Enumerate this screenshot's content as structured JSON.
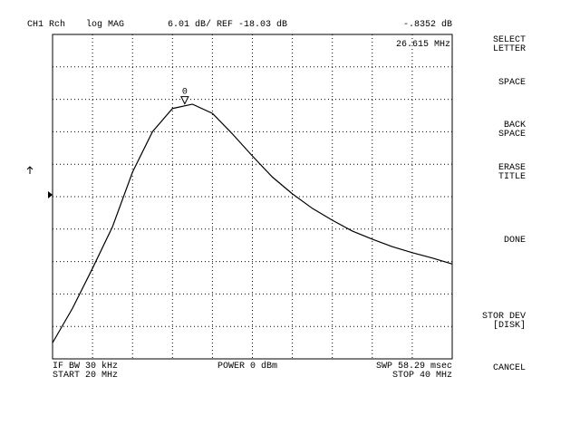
{
  "chart_data": {
    "type": "line",
    "header": {
      "channel": "CH1 Rch",
      "format": "log MAG",
      "scale": "6.01 dB/ REF -18.03 dB"
    },
    "marker": {
      "label": "0",
      "x": 26.615,
      "y": -0.8352,
      "x_label": "26.615 MHz",
      "y_label": "-.8352 dB"
    },
    "x": [
      20,
      21,
      22,
      23,
      24,
      25,
      26,
      27,
      28,
      29,
      30,
      31,
      32,
      33,
      34,
      35,
      36,
      37,
      38,
      39,
      40
    ],
    "series": [
      {
        "name": "CH1 Rch",
        "color": "#000000",
        "values": [
          -45.1,
          -38.7,
          -31.3,
          -23.6,
          -13.5,
          -6.0,
          -1.7,
          -0.9,
          -2.6,
          -6.4,
          -10.5,
          -14.4,
          -17.5,
          -20.2,
          -22.4,
          -24.4,
          -25.9,
          -27.3,
          -28.4,
          -29.4,
          -30.5
        ]
      }
    ],
    "xlim": [
      20,
      40
    ],
    "ylim": [
      -48.08,
      12.02
    ],
    "footer": {
      "ifbw": "IF BW 30 kHz",
      "start": "START 20 MHz",
      "power": "POWER 0 dBm",
      "sweep": "SWP 58.29 msec",
      "stop": "STOP 40 MHz"
    }
  },
  "softkeys": [
    [
      "SELECT",
      "LETTER"
    ],
    [
      "SPACE"
    ],
    [
      "BACK",
      "SPACE"
    ],
    [
      "ERASE",
      "TITLE"
    ],
    [
      "DONE"
    ],
    [
      "STOR DEV",
      "[DISK]"
    ],
    [
      "CANCEL"
    ]
  ]
}
